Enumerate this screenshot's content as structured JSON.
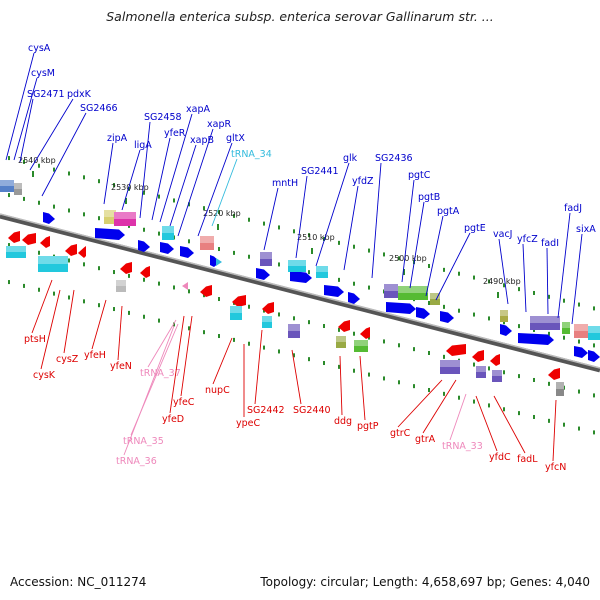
{
  "title": "Salmonella enterica subsp. enterica serovar Gallinarum str. ...",
  "footer": {
    "accession": "Accession: NC_011274",
    "stats": "Topology: circular; Length: 4,658,697 bp; Genes: 4,040"
  },
  "colors": {
    "forward_label": "#0000cc",
    "reverse_label": "#dd0000",
    "trna_forward": "#33bbdd",
    "trna_reverse": "#ee88bb",
    "backbone": "#777777",
    "forward_arrow": "#0000ee",
    "reverse_arrow": "#ee0000",
    "cog_purple": "#6a55bb",
    "cog_cyan": "#22c8dd",
    "cog_green": "#55bb33",
    "cog_pink": "#dd33aa"
  },
  "scale_labels": [
    "2540 kbp",
    "2530 kbp",
    "2520 kbp",
    "2510 kbp",
    "2500 kbp",
    "2490 kbp"
  ],
  "forward_genes": [
    "cysA",
    "cysM",
    "SG2471",
    "pdxK",
    "SG2466",
    "zipA",
    "ligA",
    "SG2458",
    "yfeR",
    "xapA",
    "xapB",
    "xapR",
    "gltX",
    "tRNA_34",
    "mntH",
    "SG2441",
    "glk",
    "yfdZ",
    "SG2436",
    "pgtC",
    "pgtB",
    "pgtA",
    "pgtE",
    "vacJ",
    "yfcZ",
    "fadI",
    "fadJ",
    "sixA"
  ],
  "reverse_genes": [
    "ptsH",
    "cysK",
    "cysZ",
    "yfeH",
    "yfeN",
    "tRNA_37",
    "yfeC",
    "yfeD",
    "tRNA_35",
    "tRNA_36",
    "nupC",
    "ypeC",
    "SG2442",
    "SG2440",
    "ddg",
    "pgtP",
    "gtrC",
    "gtrA",
    "tRNA_33",
    "yfdC",
    "fadL",
    "yfcN"
  ]
}
